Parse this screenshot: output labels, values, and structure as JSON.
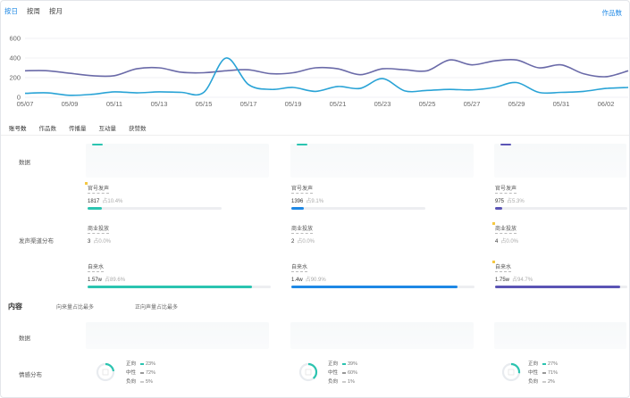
{
  "top_tabs": [
    "按日",
    "按周",
    "按月"
  ],
  "top_right_link": "作品数",
  "chart_data": {
    "type": "line",
    "x": [
      "05/07",
      "05/08",
      "05/09",
      "05/10",
      "05/11",
      "05/12",
      "05/13",
      "05/14",
      "05/15",
      "05/16",
      "05/17",
      "05/18",
      "05/19",
      "05/20",
      "05/21",
      "05/22",
      "05/23",
      "05/24",
      "05/25",
      "05/26",
      "05/27",
      "05/28",
      "05/29",
      "05/30",
      "05/31",
      "06/01",
      "06/02",
      "06/03"
    ],
    "xticks": [
      "05/07",
      "05/09",
      "05/11",
      "05/13",
      "05/15",
      "05/17",
      "05/19",
      "05/21",
      "05/23",
      "05/25",
      "05/27",
      "05/29",
      "05/31",
      "06/02"
    ],
    "ylim": [
      0,
      600
    ],
    "yticks": [
      0,
      200,
      400,
      600
    ],
    "grid": true,
    "series": [
      {
        "color": "#6a6aa8",
        "values": [
          270,
          270,
          245,
          220,
          220,
          290,
          300,
          255,
          250,
          270,
          280,
          240,
          250,
          300,
          290,
          230,
          290,
          280,
          270,
          380,
          330,
          370,
          380,
          300,
          330,
          240,
          210,
          270
        ]
      },
      {
        "color": "#29a3d6",
        "values": [
          40,
          45,
          20,
          30,
          55,
          45,
          55,
          50,
          50,
          400,
          130,
          80,
          100,
          60,
          110,
          90,
          190,
          65,
          70,
          80,
          75,
          100,
          150,
          50,
          50,
          60,
          90,
          100
        ]
      }
    ]
  },
  "metric_tabs": [
    "账号数",
    "作品数",
    "传播量",
    "互动量",
    "获赞数"
  ],
  "labels": {
    "data": "数据",
    "channel": "发声渠道分布",
    "content": "内容",
    "data2": "数据",
    "sentiment": "情感分布"
  },
  "content_notes": [
    "向来量占比最多",
    "正向声量占比最多"
  ],
  "columns": [
    {
      "accent": "#2bc4b0",
      "official": {
        "title": "官号发声",
        "value": "1817",
        "pct": "占10.4%",
        "fill": 0.104
      },
      "commercial": {
        "title": "商业投放",
        "value": "3",
        "pct": "占0.0%",
        "fill": 0.0
      },
      "organic": {
        "title": "自来水",
        "value": "1.57w",
        "pct": "占89.6%",
        "fill": 0.896
      },
      "sentiment": {
        "rows": [
          {
            "label": "正向",
            "pct": "23%"
          },
          {
            "label": "中性",
            "pct": "72%"
          },
          {
            "label": "负向",
            "pct": "5%"
          }
        ]
      }
    },
    {
      "accent": "#1e88e5",
      "official": {
        "title": "官号发声",
        "value": "1396",
        "pct": "占9.1%",
        "fill": 0.091
      },
      "commercial": {
        "title": "商业投放",
        "value": "2",
        "pct": "占0.0%",
        "fill": 0.0
      },
      "organic": {
        "title": "自来水",
        "value": "1.4w",
        "pct": "占90.9%",
        "fill": 0.909
      },
      "sentiment": {
        "rows": [
          {
            "label": "正向",
            "pct": "39%"
          },
          {
            "label": "中性",
            "pct": "60%"
          },
          {
            "label": "负向",
            "pct": "1%"
          }
        ]
      }
    },
    {
      "accent": "#5b54b5",
      "official": {
        "title": "官号发声",
        "value": "975",
        "pct": "占5.3%",
        "fill": 0.053
      },
      "commercial": {
        "title": "商业投放",
        "value": "4",
        "pct": "占0.0%",
        "fill": 0.0
      },
      "organic": {
        "title": "自来水",
        "value": "1.75w",
        "pct": "占94.7%",
        "fill": 0.947
      },
      "sentiment": {
        "rows": [
          {
            "label": "正向",
            "pct": "27%"
          },
          {
            "label": "中性",
            "pct": "71%"
          },
          {
            "label": "负向",
            "pct": "2%"
          }
        ]
      }
    }
  ]
}
